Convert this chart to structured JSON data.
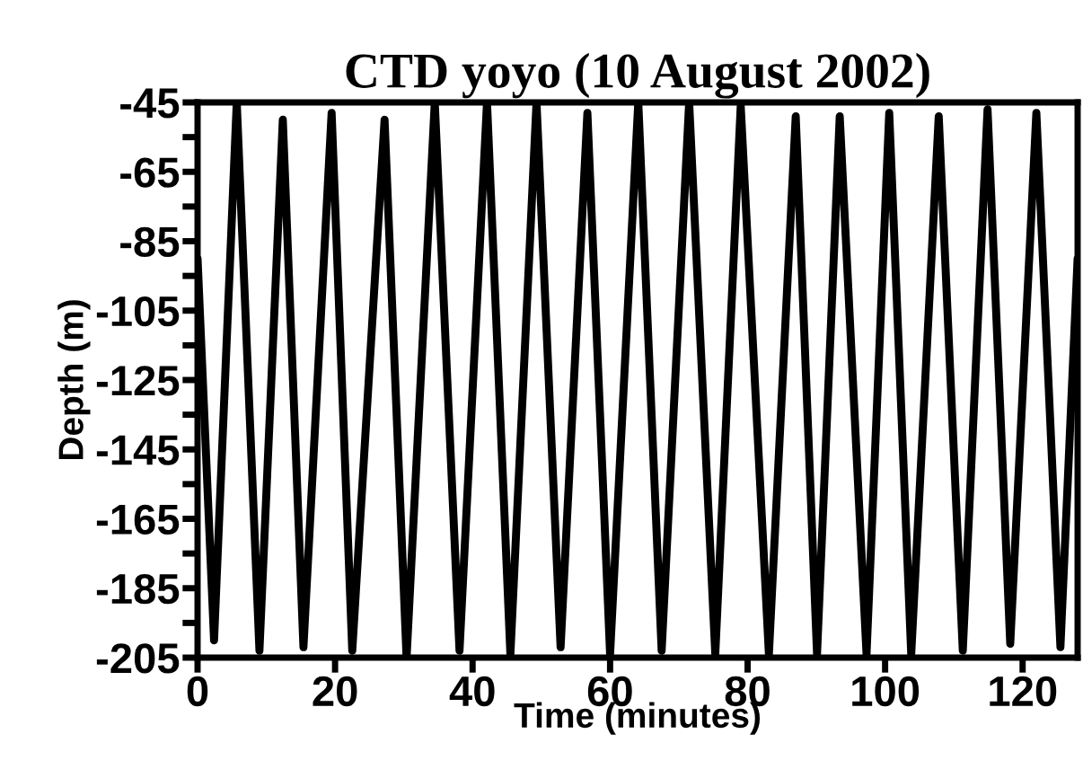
{
  "chart_data": {
    "type": "line",
    "title": "CTD yoyo (10 August 2002)",
    "xlabel": "Time (minutes)",
    "ylabel": "Depth (m)",
    "x": [
      0,
      2.4,
      5.7,
      9.0,
      12.4,
      15.4,
      19.5,
      22.5,
      27.2,
      30.4,
      34.5,
      38.1,
      42.1,
      45.5,
      49.3,
      52.8,
      56.7,
      60.0,
      64.1,
      67.5,
      71.5,
      75.3,
      79.0,
      83.1,
      87.0,
      90.1,
      93.4,
      97.3,
      100.6,
      103.8,
      107.8,
      111.3,
      114.9,
      118.2,
      122.0,
      125.5,
      128
    ],
    "series": [
      {
        "color": "#000000",
        "values": [
          -90,
          -200,
          -45,
          -203,
          -50,
          -202,
          -48,
          -203,
          -50,
          -205,
          -45,
          -203,
          -45,
          -204,
          -45,
          -202,
          -48,
          -204,
          -45,
          -203,
          -45,
          -204,
          -46,
          -204,
          -49,
          -204,
          -49,
          -204,
          -48,
          -204,
          -49,
          -203,
          -47,
          -201,
          -48,
          -202,
          -90
        ]
      }
    ],
    "xlim": [
      0,
      128
    ],
    "xticks": [
      0,
      20,
      40,
      60,
      80,
      100,
      120
    ],
    "ylim": [
      -205,
      -45
    ],
    "yticks": [
      -45,
      {
        "value": -55,
        "label": null
      },
      -65,
      {
        "value": -75,
        "label": null
      },
      -85,
      {
        "value": -95,
        "label": null
      },
      -105,
      {
        "value": -115,
        "label": null
      },
      -125,
      {
        "value": -135,
        "label": null
      },
      -145,
      {
        "value": -155,
        "label": null
      },
      -165,
      {
        "value": -175,
        "label": null
      },
      -185,
      {
        "value": -195,
        "label": null
      },
      -205
    ],
    "grid": false,
    "legend": false,
    "marker": "none",
    "line_style": "solid"
  }
}
